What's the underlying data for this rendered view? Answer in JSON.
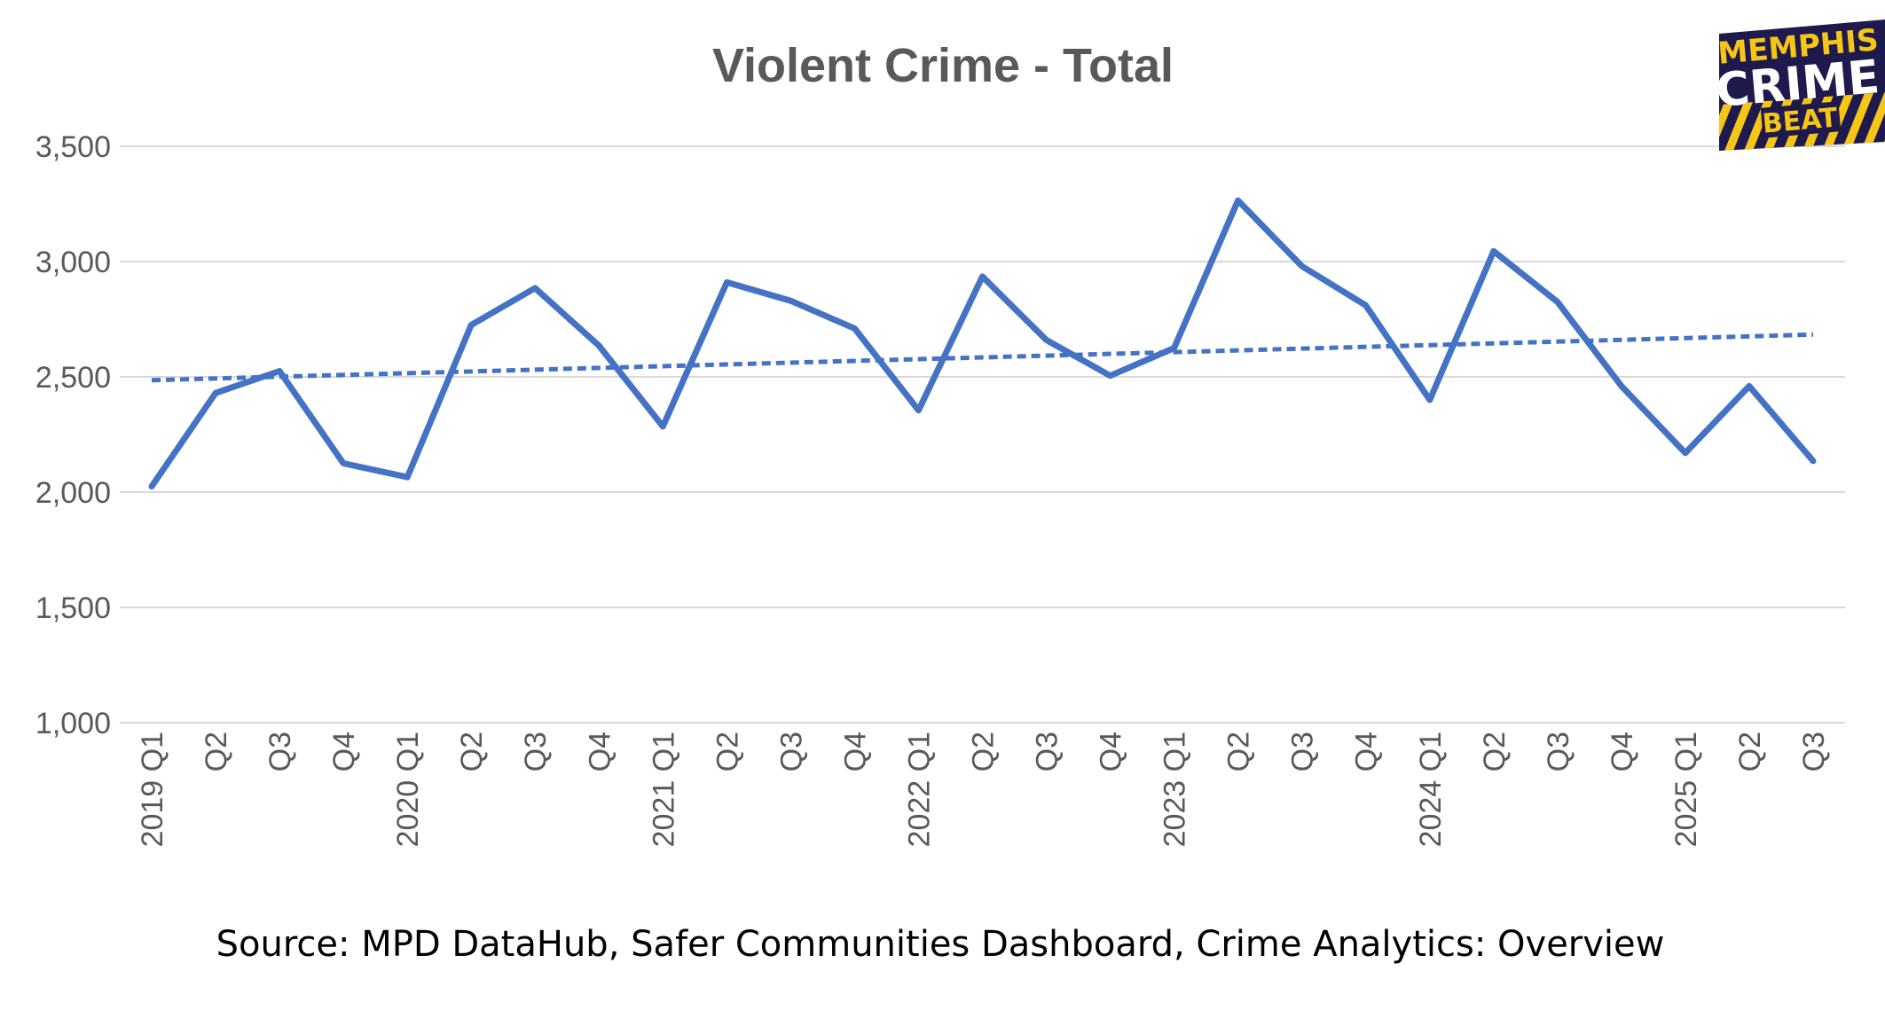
{
  "chart_data": {
    "type": "line",
    "title": "Violent Crime - Total",
    "categories": [
      "2019 Q1",
      "Q2",
      "Q3",
      "Q4",
      "2020 Q1",
      "Q2",
      "Q3",
      "Q4",
      "2021 Q1",
      "Q2",
      "Q3",
      "Q4",
      "2022 Q1",
      "Q2",
      "Q3",
      "Q4",
      "2023 Q1",
      "Q2",
      "Q3",
      "Q4",
      "2024 Q1",
      "Q2",
      "Q3",
      "Q4",
      "2025 Q1",
      "Q2",
      "Q3"
    ],
    "series": [
      {
        "values": [
          2025,
          2430,
          2525,
          2125,
          2065,
          2725,
          2885,
          2635,
          2285,
          2910,
          2830,
          2710,
          2355,
          2935,
          2660,
          2505,
          2625,
          3265,
          2980,
          2810,
          2400,
          3045,
          2825,
          2460,
          2170,
          2460,
          2135
        ]
      }
    ],
    "trendline": {
      "type": "linear",
      "style": "dotted"
    },
    "yticks": [
      1000,
      1500,
      2000,
      2500,
      3000,
      3500
    ],
    "ytick_labels": [
      "1,000",
      "1,500",
      "2,000",
      "2,500",
      "3,000",
      "3,500"
    ],
    "ylim": [
      1000,
      3500
    ],
    "grid": true,
    "legend": "none",
    "xlabel": "",
    "ylabel": "",
    "colors": {
      "line": "#4472C4",
      "grid": "#D9D9D9",
      "text": "#595959"
    }
  },
  "source": "Source: MPD DataHub, Safer Communities Dashboard,  Crime Analytics: Overview",
  "logo": {
    "line1": "MEMPHIS",
    "line2": "CRIME",
    "line3": "BEAT",
    "bg": "#1F1A4E",
    "accent": "#F5C518"
  }
}
